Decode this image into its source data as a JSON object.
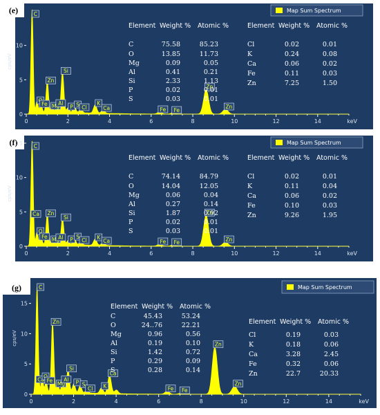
{
  "chart_data": [
    {
      "type": "spectrum",
      "panel_label": "(e)",
      "legend": "Map Sum Spectrum",
      "ylabel": "cps/eV",
      "xlabel": "keV",
      "xlim": [
        0,
        15.5
      ],
      "ylim": [
        0,
        15.3
      ],
      "xticks": [
        "0",
        "2",
        "4",
        "6",
        "8",
        "10",
        "12",
        "14"
      ],
      "yticks": [
        "0",
        "5",
        "10"
      ],
      "peaks": [
        {
          "e": 0.28,
          "h": 15.0
        },
        {
          "e": 0.52,
          "h": 1.6
        },
        {
          "e": 0.71,
          "h": 1.1
        },
        {
          "e": 1.01,
          "h": 4.5
        },
        {
          "e": 1.25,
          "h": 0.8
        },
        {
          "e": 1.49,
          "h": 1.2
        },
        {
          "e": 1.74,
          "h": 5.9
        },
        {
          "e": 2.01,
          "h": 0.7
        },
        {
          "e": 2.31,
          "h": 1.0
        },
        {
          "e": 2.62,
          "h": 0.6
        },
        {
          "e": 3.31,
          "h": 1.2
        },
        {
          "e": 3.69,
          "h": 0.5
        },
        {
          "e": 6.4,
          "h": 0.3
        },
        {
          "e": 7.06,
          "h": 0.2
        },
        {
          "e": 8.64,
          "h": 3.6
        },
        {
          "e": 9.57,
          "h": 0.7
        }
      ],
      "labels": [
        {
          "text": "C",
          "e": 0.28,
          "h": 15.0
        },
        {
          "text": "O",
          "e": 0.52,
          "h": 1.6
        },
        {
          "text": "Fe",
          "e": 0.71,
          "h": 1.1
        },
        {
          "text": "Mg",
          "e": 1.25,
          "h": 0.8
        },
        {
          "text": "Zn",
          "e": 1.01,
          "h": 4.5
        },
        {
          "text": "Al",
          "e": 1.49,
          "h": 1.2
        },
        {
          "text": "Si",
          "e": 1.74,
          "h": 5.9
        },
        {
          "text": "P",
          "e": 2.01,
          "h": 0.7
        },
        {
          "text": "S",
          "e": 2.31,
          "h": 1.0
        },
        {
          "text": "Cl",
          "e": 2.62,
          "h": 0.6
        },
        {
          "text": "K",
          "e": 3.31,
          "h": 1.2
        },
        {
          "text": "Ca",
          "e": 3.69,
          "h": 0.5
        },
        {
          "text": "Fe",
          "e": 6.4,
          "h": 0.3
        },
        {
          "text": "Fe",
          "e": 7.06,
          "h": 0.2
        },
        {
          "text": "Zn",
          "e": 8.64,
          "h": 3.6
        },
        {
          "text": "Zn",
          "e": 9.57,
          "h": 0.7
        }
      ],
      "table_headers": [
        "Element",
        "Weight %",
        "Atomic %"
      ],
      "table_left": [
        [
          "C",
          "75.58",
          "85.23"
        ],
        [
          "O",
          "13.85",
          "11.73"
        ],
        [
          "Mg",
          "0.09",
          "0.05"
        ],
        [
          "Al",
          "0.41",
          "0.21"
        ],
        [
          "Si",
          "2.33",
          "1.13"
        ],
        [
          "P",
          "0.02",
          "0.01"
        ],
        [
          "S",
          "0.03",
          "0.01"
        ]
      ],
      "table_right": [
        [
          "Cl",
          "0.02",
          "0.01"
        ],
        [
          "K",
          "0.24",
          "0.08"
        ],
        [
          "Ca",
          "0.06",
          "0.02"
        ],
        [
          "Fe",
          "0.11",
          "0.03"
        ],
        [
          "Zn",
          "7.25",
          "1.50"
        ]
      ]
    },
    {
      "type": "spectrum",
      "panel_label": "(f)",
      "legend": "Map Sum Spectrum",
      "ylabel": "cps/eV",
      "xlabel": "keV",
      "xlim": [
        0,
        15.5
      ],
      "ylim": [
        0,
        15.3
      ],
      "xticks": [
        "0",
        "2",
        "4",
        "6",
        "8",
        "10",
        "12",
        "14"
      ],
      "yticks": [
        "0",
        "5",
        "10",
        "15"
      ],
      "peaks": [
        {
          "e": 0.28,
          "h": 15.2
        },
        {
          "e": 0.52,
          "h": 1.8
        },
        {
          "e": 0.71,
          "h": 1.0
        },
        {
          "e": 1.01,
          "h": 4.4
        },
        {
          "e": 1.25,
          "h": 0.6
        },
        {
          "e": 1.49,
          "h": 0.9
        },
        {
          "e": 1.74,
          "h": 3.8
        },
        {
          "e": 2.01,
          "h": 0.6
        },
        {
          "e": 2.31,
          "h": 1.0
        },
        {
          "e": 2.62,
          "h": 0.5
        },
        {
          "e": 3.31,
          "h": 0.9
        },
        {
          "e": 3.69,
          "h": 0.4
        },
        {
          "e": 6.4,
          "h": 0.3
        },
        {
          "e": 7.06,
          "h": 0.2
        },
        {
          "e": 8.64,
          "h": 4.5
        },
        {
          "e": 9.57,
          "h": 0.6
        }
      ],
      "labels": [
        {
          "text": "C",
          "e": 0.28,
          "h": 15.2
        },
        {
          "text": "Ca",
          "e": 0.3,
          "h": 4.3
        },
        {
          "text": "O",
          "e": 0.52,
          "h": 1.8
        },
        {
          "text": "Fe",
          "e": 0.71,
          "h": 1.0
        },
        {
          "text": "Mg",
          "e": 1.25,
          "h": 0.6
        },
        {
          "text": "Zn",
          "e": 1.01,
          "h": 4.4
        },
        {
          "text": "Al",
          "e": 1.49,
          "h": 0.9
        },
        {
          "text": "Si",
          "e": 1.74,
          "h": 3.8
        },
        {
          "text": "P",
          "e": 2.01,
          "h": 0.6
        },
        {
          "text": "S",
          "e": 2.31,
          "h": 1.0
        },
        {
          "text": "Cl",
          "e": 2.62,
          "h": 0.5
        },
        {
          "text": "K",
          "e": 3.31,
          "h": 0.9
        },
        {
          "text": "Ca",
          "e": 3.69,
          "h": 0.4
        },
        {
          "text": "Fe",
          "e": 6.4,
          "h": 0.3
        },
        {
          "text": "Fe",
          "e": 7.06,
          "h": 0.2
        },
        {
          "text": "Zn",
          "e": 8.64,
          "h": 4.5
        },
        {
          "text": "Zn",
          "e": 9.57,
          "h": 0.6
        }
      ],
      "table_headers": [
        "Element",
        "Weight %",
        "Atomic %"
      ],
      "table_left": [
        [
          "C",
          "74.14",
          "84.79"
        ],
        [
          "O",
          "14.04",
          "12.05"
        ],
        [
          "Mg",
          "0.06",
          "0.04"
        ],
        [
          "Al",
          "0.27",
          "0.14"
        ],
        [
          "Si",
          "1.87",
          "0.92"
        ],
        [
          "P",
          "0.02",
          "0.01"
        ],
        [
          "S",
          "0.03",
          "0.01"
        ]
      ],
      "table_right": [
        [
          "Cl",
          "0.02",
          "0.01"
        ],
        [
          "K",
          "0.11",
          "0.04"
        ],
        [
          "Ca",
          "0.06",
          "0.02"
        ],
        [
          "Fe",
          "0.10",
          "0.03"
        ],
        [
          "Zn",
          "9.26",
          "1.95"
        ]
      ]
    },
    {
      "type": "spectrum",
      "panel_label": "(g)",
      "legend": "Map Sum Spectrum",
      "ylabel": "cps/eV",
      "xlabel": "keV",
      "xlim": [
        0,
        15.5
      ],
      "ylim": [
        0,
        18.5
      ],
      "xticks": [
        "0",
        "2",
        "4",
        "6",
        "8",
        "10",
        "12",
        "14"
      ],
      "yticks": [
        "0",
        "5",
        "10",
        "15"
      ],
      "peaks": [
        {
          "e": 0.28,
          "h": 17.5
        },
        {
          "e": 0.52,
          "h": 2.5
        },
        {
          "e": 0.71,
          "h": 1.8
        },
        {
          "e": 1.01,
          "h": 11.5
        },
        {
          "e": 1.25,
          "h": 1.3
        },
        {
          "e": 1.49,
          "h": 2.0
        },
        {
          "e": 1.74,
          "h": 3.8
        },
        {
          "e": 2.01,
          "h": 1.5
        },
        {
          "e": 2.31,
          "h": 1.2
        },
        {
          "e": 2.62,
          "h": 0.5
        },
        {
          "e": 3.31,
          "h": 0.9
        },
        {
          "e": 3.69,
          "h": 3.0
        },
        {
          "e": 4.01,
          "h": 0.6
        },
        {
          "e": 6.4,
          "h": 0.5
        },
        {
          "e": 7.06,
          "h": 0.2
        },
        {
          "e": 8.64,
          "h": 7.8
        },
        {
          "e": 9.57,
          "h": 1.3
        }
      ],
      "labels": [
        {
          "text": "C",
          "e": 0.28,
          "h": 17.5
        },
        {
          "text": "Ca",
          "e": 0.3,
          "h": 2.0
        },
        {
          "text": "O",
          "e": 0.52,
          "h": 2.5
        },
        {
          "text": "Fe",
          "e": 0.71,
          "h": 1.8
        },
        {
          "text": "Zn",
          "e": 1.01,
          "h": 11.5
        },
        {
          "text": "Mg",
          "e": 1.25,
          "h": 1.3
        },
        {
          "text": "Al",
          "e": 1.49,
          "h": 2.0
        },
        {
          "text": "Si",
          "e": 1.74,
          "h": 3.8
        },
        {
          "text": "P",
          "e": 2.01,
          "h": 1.5
        },
        {
          "text": "S",
          "e": 2.31,
          "h": 1.2
        },
        {
          "text": "Cl",
          "e": 2.62,
          "h": 0.5
        },
        {
          "text": "K",
          "e": 3.31,
          "h": 0.9
        },
        {
          "text": "Ca",
          "e": 3.69,
          "h": 3.0
        },
        {
          "text": "Fe",
          "e": 6.4,
          "h": 0.5
        },
        {
          "text": "Fe",
          "e": 7.06,
          "h": 0.2
        },
        {
          "text": "Zn",
          "e": 8.64,
          "h": 7.8
        },
        {
          "text": "Zn",
          "e": 9.57,
          "h": 1.3
        }
      ],
      "table_headers": [
        "Element",
        "Weight %",
        "Atomic %"
      ],
      "table_left": [
        [
          "C",
          "45.43",
          "53.24"
        ],
        [
          "O",
          "24..76",
          "22.21"
        ],
        [
          "Mg",
          "0.96",
          "0.56"
        ],
        [
          "Al",
          "0.19",
          "0.10"
        ],
        [
          "Si",
          "1.42",
          "0.72"
        ],
        [
          "P",
          " 0.29",
          "0.09"
        ],
        [
          "S",
          "0.28",
          "0.14"
        ]
      ],
      "table_right": [
        [
          "Cl",
          "0.19",
          "0.03"
        ],
        [
          "K",
          "0.18",
          "0.06"
        ],
        [
          "Ca",
          "3.28",
          "2.45"
        ],
        [
          "Fe",
          "0.32",
          "0.06"
        ],
        [
          "Zn",
          "22.7",
          "20.33"
        ]
      ]
    }
  ]
}
